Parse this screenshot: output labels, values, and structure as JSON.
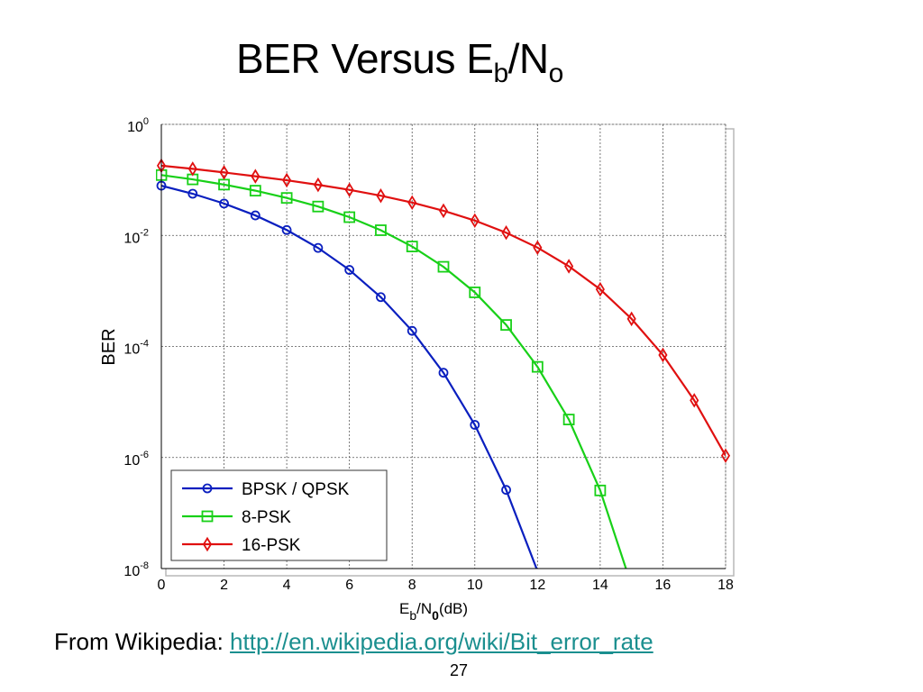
{
  "slide": {
    "title_main": "BER Versus E",
    "title_sub1": "b",
    "title_mid": "/N",
    "title_sub2": "o",
    "source_prefix": "From Wikipedia: ",
    "source_link": "http://en.wikipedia.org/wiki/Bit_error_rate",
    "page_number": "27"
  },
  "chart_data": {
    "type": "line",
    "title": "",
    "ylabel": "BER",
    "xlabel_main": "E",
    "xlabel_sub1": "b",
    "xlabel_mid": "/N",
    "xlabel_sub2": "0",
    "xlabel_unit": "(dB)",
    "y_scale": "log",
    "xlim": [
      0,
      18
    ],
    "ylim": [
      1e-08,
      1
    ],
    "x_ticks": [
      0,
      2,
      4,
      6,
      8,
      10,
      12,
      14,
      16,
      18
    ],
    "y_ticks": [
      {
        "value": 1,
        "base": "10",
        "exp": "0"
      },
      {
        "value": 0.01,
        "base": "10",
        "exp": "-2"
      },
      {
        "value": 0.0001,
        "base": "10",
        "exp": "-4"
      },
      {
        "value": 1e-06,
        "base": "10",
        "exp": "-6"
      },
      {
        "value": 1e-08,
        "base": "10",
        "exp": "-8"
      }
    ],
    "grid": true,
    "legend_position": "bottom-left",
    "series": [
      {
        "name": "BPSK / QPSK",
        "color": "#0a1fbf",
        "marker": "circle",
        "x": [
          0,
          1,
          2,
          3,
          4,
          5,
          6,
          7,
          8,
          9,
          10,
          11,
          12
        ],
        "y": [
          0.0786,
          0.0563,
          0.0375,
          0.0229,
          0.0125,
          0.00595,
          0.00239,
          0.000773,
          0.000191,
          3.36e-05,
          3.87e-06,
          2.61e-07,
          9.01e-09
        ]
      },
      {
        "name": "8-PSK",
        "color": "#18d018",
        "marker": "square",
        "x": [
          0,
          1,
          2,
          3,
          4,
          5,
          6,
          7,
          8,
          9,
          10,
          11,
          12,
          13,
          14,
          15
        ],
        "y": [
          0.122,
          0.102,
          0.0822,
          0.0639,
          0.0473,
          0.0331,
          0.0213,
          0.0124,
          0.00631,
          0.00272,
          0.000942,
          0.000244,
          4.29e-05,
          4.83e-06,
          2.55e-07,
          4.95e-09
        ]
      },
      {
        "name": "16-PSK",
        "color": "#e01010",
        "marker": "diamond",
        "x": [
          0,
          1,
          2,
          3,
          4,
          5,
          6,
          7,
          8,
          9,
          10,
          11,
          12,
          13,
          14,
          15,
          16,
          17,
          18
        ],
        "y": [
          0.18,
          0.158,
          0.136,
          0.116,
          0.0985,
          0.0815,
          0.0661,
          0.0518,
          0.039,
          0.0278,
          0.0185,
          0.0112,
          0.00603,
          0.00278,
          0.00107,
          0.000314,
          7.01e-05,
          1.07e-05,
          1.08e-06
        ]
      }
    ]
  }
}
